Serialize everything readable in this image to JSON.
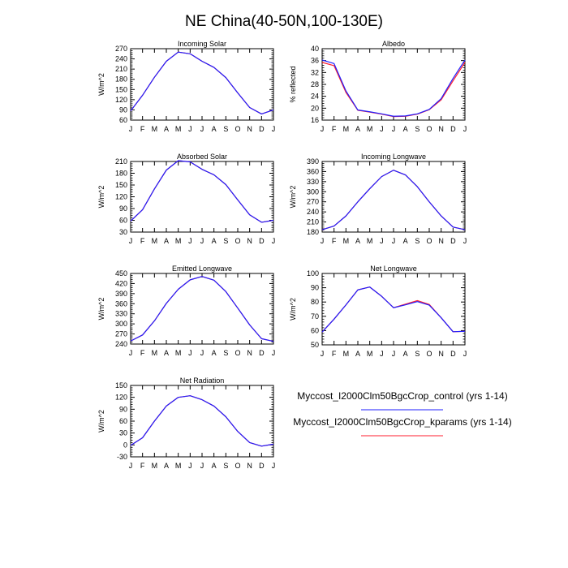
{
  "figure": {
    "title": "NE China(40-50N,100-130E)",
    "months": [
      "J",
      "F",
      "M",
      "A",
      "M",
      "J",
      "J",
      "A",
      "S",
      "O",
      "N",
      "D",
      "J"
    ]
  },
  "colors": {
    "control": "#1f1fff",
    "kparams": "#ff1f2f",
    "axes": "#000000"
  },
  "legend": [
    {
      "label": "Myccost_I2000Clm50BgcCrop_control (yrs 1-14)",
      "series": "control"
    },
    {
      "label": "Myccost_I2000Clm50BgcCrop_kparams (yrs 1-14)",
      "series": "kparams"
    }
  ],
  "chart_data": [
    {
      "type": "line",
      "id": "incoming-solar",
      "title": "Incoming Solar",
      "ylabel": "W/m^2",
      "ylim": [
        60,
        270
      ],
      "yticks": [
        60,
        90,
        120,
        150,
        180,
        210,
        240,
        270
      ],
      "x": [
        "J",
        "F",
        "M",
        "A",
        "M",
        "J",
        "J",
        "A",
        "S",
        "O",
        "N",
        "D",
        "J"
      ],
      "series": [
        {
          "name": "control",
          "values": [
            87,
            133,
            186,
            233,
            260,
            255,
            233,
            215,
            185,
            140,
            97,
            78,
            90
          ]
        },
        {
          "name": "kparams",
          "values": [
            87,
            133,
            186,
            233,
            260,
            255,
            233,
            215,
            185,
            140,
            97,
            78,
            90
          ]
        }
      ]
    },
    {
      "type": "line",
      "id": "albedo",
      "title": "Albedo",
      "ylabel": "% reflected",
      "ylim": [
        16,
        40
      ],
      "yticks": [
        16,
        20,
        24,
        28,
        32,
        36,
        40
      ],
      "x": [
        "J",
        "F",
        "M",
        "A",
        "M",
        "J",
        "J",
        "A",
        "S",
        "O",
        "N",
        "D",
        "J"
      ],
      "series": [
        {
          "name": "control",
          "values": [
            36.2,
            35.0,
            25.8,
            19.4,
            18.8,
            18.1,
            17.3,
            17.4,
            18.1,
            19.6,
            23.2,
            30.0,
            36.2
          ]
        },
        {
          "name": "kparams",
          "values": [
            35.4,
            34.3,
            25.3,
            19.3,
            18.7,
            18.0,
            17.2,
            17.3,
            18.0,
            19.5,
            22.8,
            29.2,
            35.4
          ]
        }
      ]
    },
    {
      "type": "line",
      "id": "absorbed-solar",
      "title": "Absorbed Solar",
      "ylabel": "W/m^2",
      "ylim": [
        30,
        210
      ],
      "yticks": [
        30,
        60,
        90,
        120,
        150,
        180,
        210
      ],
      "x": [
        "J",
        "F",
        "M",
        "A",
        "M",
        "J",
        "J",
        "A",
        "S",
        "O",
        "N",
        "D",
        "J"
      ],
      "series": [
        {
          "name": "control",
          "values": [
            58,
            87,
            140,
            188,
            212,
            209,
            190,
            176,
            151,
            112,
            74,
            55,
            60
          ]
        },
        {
          "name": "kparams",
          "values": [
            58,
            87,
            140,
            188,
            212,
            209,
            190,
            176,
            151,
            112,
            74,
            55,
            60
          ]
        }
      ]
    },
    {
      "type": "line",
      "id": "incoming-longwave",
      "title": "Incoming Longwave",
      "ylabel": "W/m^2",
      "ylim": [
        180,
        390
      ],
      "yticks": [
        180,
        210,
        240,
        270,
        300,
        330,
        360,
        390
      ],
      "x": [
        "J",
        "F",
        "M",
        "A",
        "M",
        "J",
        "J",
        "A",
        "S",
        "O",
        "N",
        "D",
        "J"
      ],
      "series": [
        {
          "name": "control",
          "values": [
            187,
            198,
            228,
            270,
            309,
            345,
            364,
            350,
            315,
            270,
            228,
            195,
            187
          ]
        },
        {
          "name": "kparams",
          "values": [
            187,
            198,
            228,
            270,
            309,
            345,
            364,
            350,
            315,
            270,
            228,
            195,
            187
          ]
        }
      ]
    },
    {
      "type": "line",
      "id": "emitted-longwave",
      "title": "Emitted Longwave",
      "ylabel": "W/m^2",
      "ylim": [
        240,
        450
      ],
      "yticks": [
        240,
        270,
        300,
        330,
        360,
        390,
        420,
        450
      ],
      "x": [
        "J",
        "F",
        "M",
        "A",
        "M",
        "J",
        "J",
        "A",
        "S",
        "O",
        "N",
        "D",
        "J"
      ],
      "series": [
        {
          "name": "control",
          "values": [
            249,
            267,
            309,
            361,
            403,
            431,
            441,
            430,
            396,
            347,
            297,
            256,
            248
          ]
        },
        {
          "name": "kparams",
          "values": [
            249,
            267,
            309,
            361,
            403,
            431,
            441,
            430,
            396,
            347,
            297,
            256,
            248
          ]
        }
      ]
    },
    {
      "type": "line",
      "id": "net-longwave",
      "title": "Net Longwave",
      "ylabel": "W/m^2",
      "ylim": [
        50,
        100
      ],
      "yticks": [
        50,
        60,
        70,
        80,
        90,
        100
      ],
      "x": [
        "J",
        "F",
        "M",
        "A",
        "M",
        "J",
        "J",
        "A",
        "S",
        "O",
        "N",
        "D",
        "J"
      ],
      "series": [
        {
          "name": "control",
          "values": [
            59,
            68,
            78,
            88.5,
            90.5,
            84,
            76,
            78,
            80.3,
            77.8,
            69,
            59.2,
            59.5
          ]
        },
        {
          "name": "kparams",
          "values": [
            59,
            68,
            78,
            88.5,
            90.5,
            84,
            76,
            78.5,
            81,
            78.3,
            69,
            59.2,
            59.5
          ]
        }
      ]
    },
    {
      "type": "line",
      "id": "net-radiation",
      "title": "Net Radiation",
      "ylabel": "W/m^2",
      "ylim": [
        -30,
        150
      ],
      "yticks": [
        -30,
        0,
        30,
        60,
        90,
        120,
        150
      ],
      "x": [
        "J",
        "F",
        "M",
        "A",
        "M",
        "J",
        "J",
        "A",
        "S",
        "O",
        "N",
        "D",
        "J"
      ],
      "series": [
        {
          "name": "control",
          "values": [
            -1,
            18,
            60,
            98,
            120,
            124,
            114,
            98,
            71,
            34,
            6,
            -3,
            2
          ]
        },
        {
          "name": "kparams",
          "values": [
            -1,
            18,
            60,
            98,
            120,
            124,
            114,
            98,
            71,
            34,
            6,
            -3,
            2
          ]
        }
      ]
    }
  ]
}
